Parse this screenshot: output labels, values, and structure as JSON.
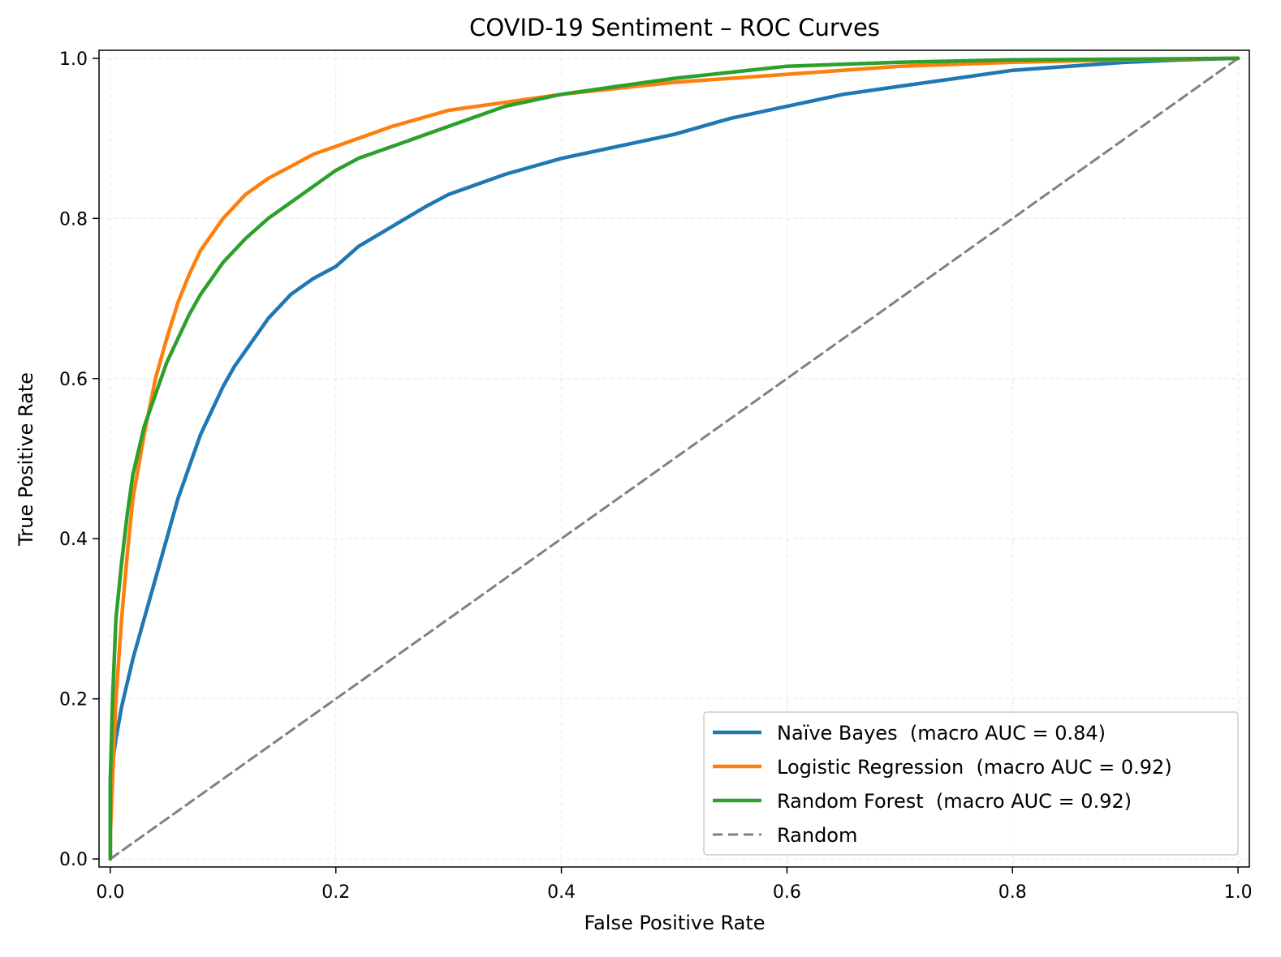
{
  "chart_data": {
    "type": "line",
    "title": "COVID-19 Sentiment – ROC Curves",
    "xlabel": "False Positive Rate",
    "ylabel": "True Positive Rate",
    "xlim": [
      -0.01,
      1.01
    ],
    "ylim": [
      -0.01,
      1.01
    ],
    "xticks": [
      "0.0",
      "0.2",
      "0.4",
      "0.6",
      "0.8",
      "1.0"
    ],
    "yticks": [
      "0.0",
      "0.2",
      "0.4",
      "0.6",
      "0.8",
      "1.0"
    ],
    "grid": true,
    "legend_position": "lower-right",
    "series": [
      {
        "name": "Naïve Bayes  (macro AUC = 0.84)",
        "color": "#1f77b4",
        "style": "solid",
        "x": [
          0.0,
          0.0,
          0.005,
          0.01,
          0.02,
          0.03,
          0.04,
          0.05,
          0.06,
          0.07,
          0.08,
          0.09,
          0.1,
          0.11,
          0.12,
          0.13,
          0.14,
          0.15,
          0.16,
          0.17,
          0.18,
          0.2,
          0.22,
          0.25,
          0.28,
          0.3,
          0.35,
          0.4,
          0.45,
          0.5,
          0.55,
          0.6,
          0.65,
          0.7,
          0.75,
          0.8,
          0.85,
          0.9,
          0.95,
          1.0
        ],
        "y": [
          0.0,
          0.1,
          0.15,
          0.19,
          0.25,
          0.3,
          0.35,
          0.4,
          0.45,
          0.49,
          0.53,
          0.56,
          0.59,
          0.615,
          0.635,
          0.655,
          0.675,
          0.69,
          0.705,
          0.715,
          0.725,
          0.74,
          0.765,
          0.79,
          0.815,
          0.83,
          0.855,
          0.875,
          0.89,
          0.905,
          0.925,
          0.94,
          0.955,
          0.965,
          0.975,
          0.985,
          0.99,
          0.995,
          0.998,
          1.0
        ]
      },
      {
        "name": "Logistic Regression  (macro AUC = 0.92)",
        "color": "#ff7f0e",
        "style": "solid",
        "x": [
          0.0,
          0.0,
          0.002,
          0.005,
          0.01,
          0.015,
          0.02,
          0.03,
          0.04,
          0.05,
          0.06,
          0.07,
          0.08,
          0.09,
          0.1,
          0.12,
          0.14,
          0.16,
          0.18,
          0.2,
          0.22,
          0.25,
          0.3,
          0.35,
          0.4,
          0.5,
          0.6,
          0.7,
          0.8,
          0.9,
          1.0
        ],
        "y": [
          0.0,
          0.03,
          0.1,
          0.2,
          0.3,
          0.38,
          0.45,
          0.53,
          0.6,
          0.65,
          0.695,
          0.73,
          0.76,
          0.78,
          0.8,
          0.83,
          0.85,
          0.865,
          0.88,
          0.89,
          0.9,
          0.915,
          0.935,
          0.945,
          0.955,
          0.97,
          0.98,
          0.99,
          0.995,
          0.998,
          1.0
        ]
      },
      {
        "name": "Random Forest  (macro AUC = 0.92)",
        "color": "#2ca02c",
        "style": "solid",
        "x": [
          0.0,
          0.0,
          0.002,
          0.005,
          0.01,
          0.015,
          0.02,
          0.03,
          0.04,
          0.05,
          0.06,
          0.07,
          0.08,
          0.09,
          0.1,
          0.12,
          0.14,
          0.16,
          0.18,
          0.2,
          0.22,
          0.25,
          0.3,
          0.35,
          0.4,
          0.45,
          0.5,
          0.6,
          0.7,
          0.8,
          0.9,
          1.0
        ],
        "y": [
          0.0,
          0.1,
          0.2,
          0.3,
          0.37,
          0.43,
          0.48,
          0.54,
          0.58,
          0.62,
          0.65,
          0.68,
          0.705,
          0.725,
          0.745,
          0.775,
          0.8,
          0.82,
          0.84,
          0.86,
          0.875,
          0.89,
          0.915,
          0.94,
          0.955,
          0.965,
          0.975,
          0.99,
          0.995,
          0.998,
          0.999,
          1.0
        ]
      },
      {
        "name": "Random",
        "color": "#808080",
        "style": "dashed",
        "x": [
          0.0,
          1.0
        ],
        "y": [
          0.0,
          1.0
        ]
      }
    ]
  }
}
